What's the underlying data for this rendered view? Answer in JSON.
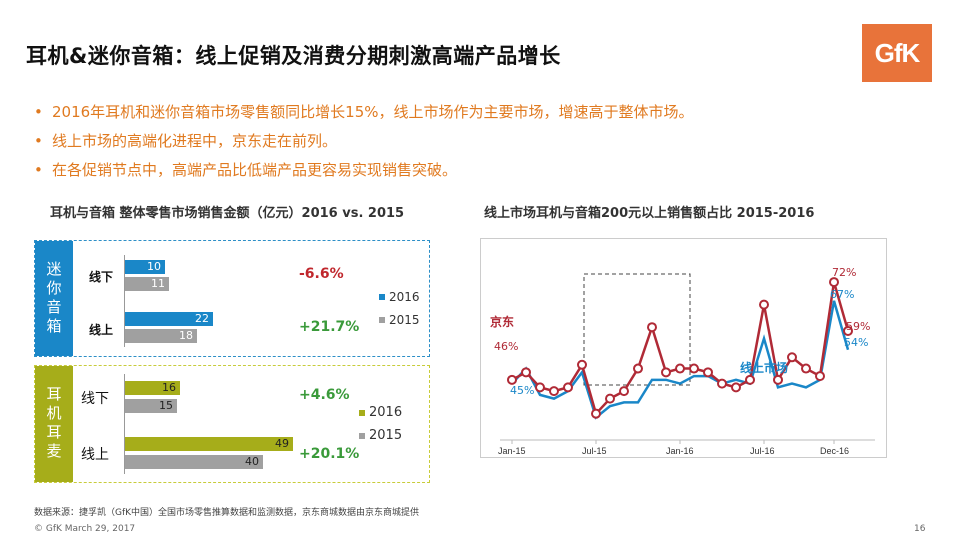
{
  "title": "耳机&迷你音箱：线上促销及消费分期刺激高端产品增长",
  "logo_text": "GfK",
  "bullets": [
    "2016年耳机和迷你音箱市场零售额同比增长15%，线上市场作为主要市场，增速高于整体市场。",
    "线上市场的高端化进程中，京东走在前列。",
    "在各促销节点中，高端产品比低端产品更容易实现销售突破。"
  ],
  "bullet_symbol": "•",
  "left_subtitle": "耳机与音箱 整体零售市场销售金额（亿元）2016 vs. 2015",
  "right_subtitle": "线上市场耳机与音箱200元以上销售额占比 2015-2016",
  "colors": {
    "accent": "#e8733a",
    "blue": "#1a87c8",
    "olive": "#a6ad1a",
    "gray": "#a0a0a0",
    "red": "#b02a36",
    "green": "#3a9a3a"
  },
  "chart_data": [
    {
      "type": "bar",
      "group": "迷你音箱",
      "categories": [
        "线下",
        "线上"
      ],
      "series": [
        {
          "name": "2016",
          "values": [
            10,
            22
          ]
        },
        {
          "name": "2015",
          "values": [
            11,
            18
          ]
        }
      ],
      "growth": [
        "-6.6%",
        "+21.7%"
      ],
      "legend": [
        "2016",
        "2015"
      ]
    },
    {
      "type": "bar",
      "group": "耳机耳麦",
      "categories": [
        "线下",
        "线上"
      ],
      "series": [
        {
          "name": "2016",
          "values": [
            16,
            49
          ]
        },
        {
          "name": "2015",
          "values": [
            15,
            40
          ]
        }
      ],
      "growth": [
        "+4.6%",
        "+20.1%"
      ],
      "legend": [
        "2016",
        "2015"
      ]
    },
    {
      "type": "line",
      "x_ticks": [
        "Jan-15",
        "Jul-15",
        "Jan-16",
        "Jul-16",
        "Dec-16"
      ],
      "series": [
        {
          "name": "京东",
          "values": [
            46,
            48,
            44,
            43,
            44,
            50,
            37,
            41,
            43,
            49,
            60,
            48,
            49,
            49,
            48,
            45,
            44,
            46,
            66,
            46,
            52,
            49,
            47,
            72,
            59
          ]
        },
        {
          "name": "线上市场",
          "values": [
            45,
            49,
            42,
            41,
            43,
            48,
            36,
            39,
            40,
            40,
            46,
            46,
            45,
            47,
            47,
            45,
            46,
            45,
            57,
            44,
            45,
            44,
            46,
            67,
            54
          ]
        }
      ],
      "annotations": {
        "jd_start": "46%",
        "online_start": "45%",
        "jd_peak": "72%",
        "online_peak": "67%",
        "jd_end": "59%",
        "online_end": "54%"
      }
    }
  ],
  "source": "数据来源：捷孚凯（GfK中国）全国市场零售推算数据和监测数据，京东商城数据由京东商城提供",
  "footer": "© GfK March 29, 2017",
  "page_number": "16"
}
